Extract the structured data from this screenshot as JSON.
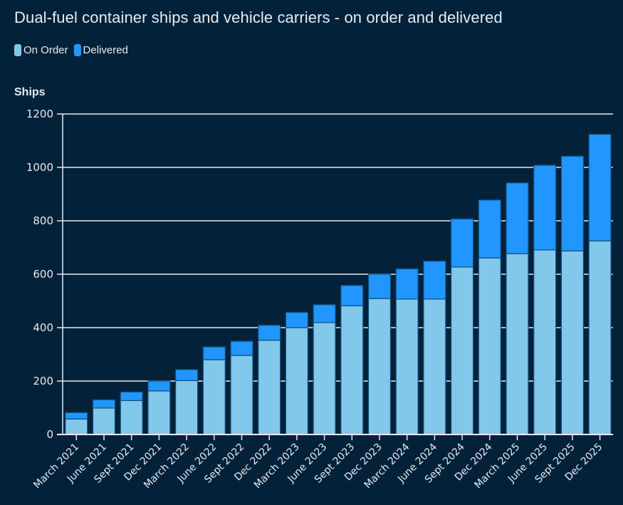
{
  "chart_data": {
    "type": "bar",
    "stacked": true,
    "title": "Dual-fuel container ships and vehicle carriers - on order and delivered",
    "xlabel": "",
    "ylabel": "Ships",
    "ylim": [
      0,
      1200
    ],
    "yticks": [
      0,
      200,
      400,
      600,
      800,
      1000,
      1200
    ],
    "grid": true,
    "legend_position": "top-left",
    "categories": [
      "March 2021",
      "June 2021",
      "Sept 2021",
      "Dec 2021",
      "March 2022",
      "June 2022",
      "Sept 2022",
      "Dec 2022",
      "March 2023",
      "June 2023",
      "Sept 2023",
      "Dec 2023",
      "March 2024",
      "June 2024",
      "Sept 2024",
      "Dec 2024",
      "March 2025",
      "June 2025",
      "Sept 2025",
      "Dec 2025"
    ],
    "series": [
      {
        "name": "On Order",
        "color": "#81C8EB",
        "values": [
          58,
          99,
          127,
          163,
          202,
          280,
          296,
          353,
          400,
          419,
          482,
          509,
          507,
          507,
          627,
          661,
          677,
          691,
          687,
          725
        ]
      },
      {
        "name": "Delivered",
        "color": "#2196FF",
        "values": [
          24,
          31,
          32,
          37,
          41,
          48,
          53,
          56,
          57,
          67,
          76,
          91,
          113,
          142,
          180,
          217,
          265,
          317,
          355,
          399
        ]
      }
    ],
    "totals": [
      82,
      130,
      159,
      200,
      243,
      328,
      349,
      409,
      457,
      486,
      558,
      600,
      620,
      649,
      807,
      878,
      942,
      1008,
      1042,
      1124
    ]
  },
  "colors": {
    "background": "#03223A",
    "on_order": "#81C8EB",
    "delivered": "#2196FF",
    "bar_border": "#0F4E7A",
    "grid": "#E6EBF0",
    "text": "#E8ECF0"
  }
}
